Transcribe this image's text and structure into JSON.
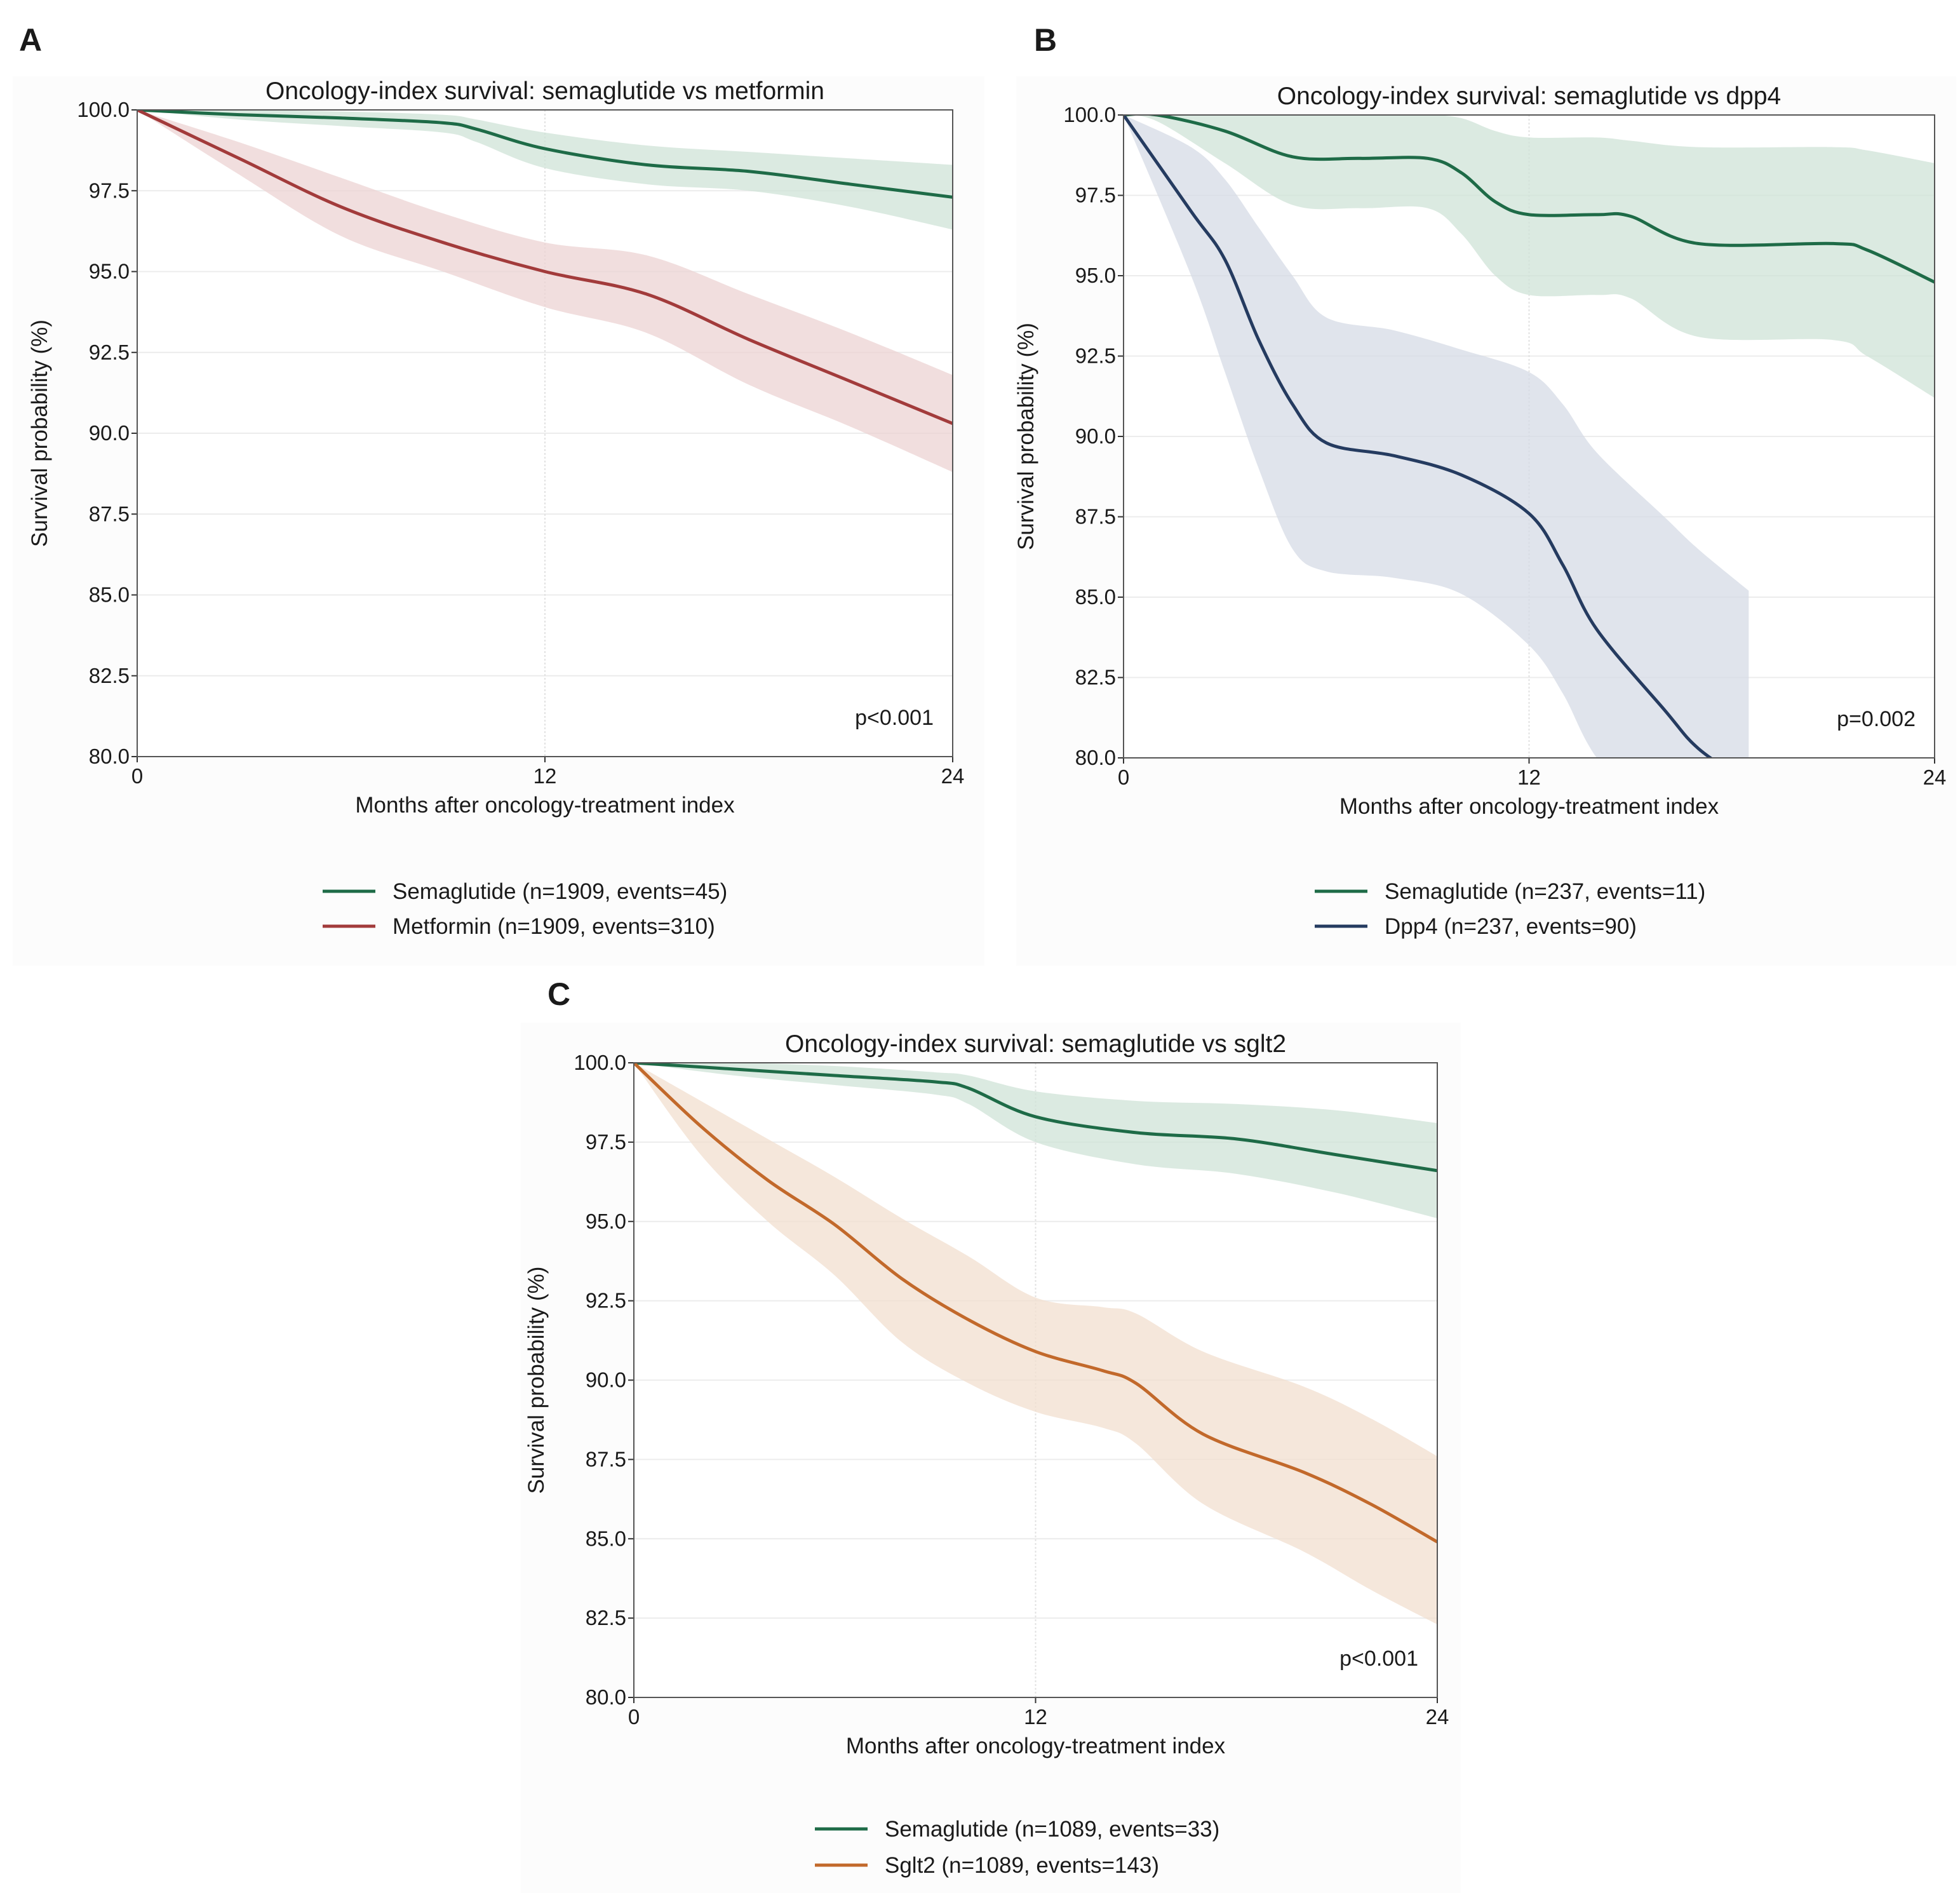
{
  "figure": {
    "panels": [
      {
        "panel_label": "A",
        "p_value": "p<0.001"
      },
      {
        "panel_label": "B",
        "p_value": "p=0.002"
      },
      {
        "panel_label": "C",
        "p_value": "p<0.001"
      }
    ]
  },
  "chart_data": [
    {
      "type": "line",
      "title": "Oncology-index survival: semaglutide vs metformin",
      "xlabel": "Months after oncology-treatment index",
      "ylabel": "Survival probability (%)",
      "xlim": [
        0,
        24
      ],
      "ylim": [
        80,
        100
      ],
      "xticks": [
        "0",
        "12",
        "24"
      ],
      "yticks": [
        "80.0",
        "82.5",
        "85.0",
        "87.5",
        "90.0",
        "92.5",
        "95.0",
        "97.5",
        "100.0"
      ],
      "grid": true,
      "legend_position": "bottom",
      "annotation": "p<0.001",
      "series": [
        {
          "name": "Semaglutide (n=1909, events=45)",
          "color": "#1e6b47",
          "band_color": "#cfe3d7",
          "x": [
            0,
            3,
            6,
            9,
            10,
            12,
            15,
            18,
            21,
            24
          ],
          "y": [
            100,
            99.85,
            99.75,
            99.6,
            99.4,
            98.8,
            98.3,
            98.1,
            97.7,
            97.3
          ],
          "ci_upper": [
            100,
            100,
            99.95,
            99.85,
            99.7,
            99.3,
            98.9,
            98.7,
            98.5,
            98.3
          ],
          "ci_lower": [
            100,
            99.7,
            99.5,
            99.3,
            99.0,
            98.2,
            97.7,
            97.5,
            97.0,
            96.3
          ]
        },
        {
          "name": "Metformin (n=1909, events=310)",
          "color": "#a23b3b",
          "band_color": "#ecd3d3",
          "x": [
            0,
            3,
            6,
            9,
            12,
            15,
            18,
            21,
            24
          ],
          "y": [
            100,
            98.5,
            97.0,
            95.9,
            95.0,
            94.3,
            92.9,
            91.6,
            90.3
          ],
          "ci_upper": [
            100,
            99.0,
            97.9,
            96.8,
            95.9,
            95.5,
            94.3,
            93.1,
            91.8
          ],
          "ci_lower": [
            100,
            98.0,
            96.1,
            95.0,
            93.9,
            93.1,
            91.5,
            90.2,
            88.8
          ]
        }
      ]
    },
    {
      "type": "line",
      "title": "Oncology-index survival: semaglutide vs dpp4",
      "xlabel": "Months after oncology-treatment index",
      "ylabel": "Survival probability (%)",
      "xlim": [
        0,
        24
      ],
      "ylim": [
        80,
        100
      ],
      "xticks": [
        "0",
        "12",
        "24"
      ],
      "yticks": [
        "80.0",
        "82.5",
        "85.0",
        "87.5",
        "90.0",
        "92.5",
        "95.0",
        "97.5",
        "100.0"
      ],
      "grid": true,
      "legend_position": "bottom",
      "annotation": "p=0.002",
      "series": [
        {
          "name": "Semaglutide (n=237, events=11)",
          "color": "#1e6b47",
          "band_color": "#cfe3d7",
          "x": [
            0,
            1,
            3,
            5,
            7,
            9,
            10,
            11,
            12,
            14,
            15,
            17,
            21,
            22,
            24
          ],
          "y": [
            100,
            100,
            99.5,
            98.7,
            98.65,
            98.65,
            98.2,
            97.3,
            96.9,
            96.9,
            96.85,
            96.0,
            96.0,
            95.8,
            94.8
          ],
          "ci_upper": [
            100,
            100,
            100,
            100,
            100,
            100,
            99.9,
            99.5,
            99.3,
            99.3,
            99.2,
            99.0,
            99.0,
            98.9,
            98.5
          ],
          "ci_lower": [
            100,
            99.8,
            98.5,
            97.2,
            97.1,
            97.1,
            96.3,
            95.0,
            94.4,
            94.4,
            94.3,
            93.1,
            93.0,
            92.5,
            91.2
          ]
        },
        {
          "name": "Dpp4 (n=237, events=90)",
          "color": "#253b60",
          "band_color": "#d6dbe5",
          "x": [
            0,
            2,
            3,
            4,
            5,
            6,
            8,
            10,
            12,
            13,
            14,
            16,
            17,
            18.5
          ],
          "y": [
            100,
            97,
            95.5,
            93,
            91,
            89.8,
            89.4,
            88.8,
            87.6,
            86,
            84,
            81.5,
            80.3,
            79.2
          ],
          "ci_upper": [
            100,
            99,
            98,
            96.5,
            95,
            93.7,
            93.3,
            92.7,
            92.0,
            91.0,
            89.5,
            87.5,
            86.5,
            85.2
          ],
          "ci_lower": [
            100,
            95,
            92,
            89,
            86.5,
            85.8,
            85.6,
            85.1,
            83.5,
            82,
            80,
            77.5,
            76.5,
            75
          ]
        }
      ]
    },
    {
      "type": "line",
      "title": "Oncology-index survival: semaglutide vs sglt2",
      "xlabel": "Months after oncology-treatment index",
      "ylabel": "Survival probability (%)",
      "xlim": [
        0,
        24
      ],
      "ylim": [
        80,
        100
      ],
      "xticks": [
        "0",
        "12",
        "24"
      ],
      "yticks": [
        "80.0",
        "82.5",
        "85.0",
        "87.5",
        "90.0",
        "92.5",
        "95.0",
        "97.5",
        "100.0"
      ],
      "grid": true,
      "legend_position": "bottom",
      "annotation": "p<0.001",
      "series": [
        {
          "name": "Semaglutide (n=1089, events=33)",
          "color": "#1e6b47",
          "band_color": "#cfe3d7",
          "x": [
            0,
            3,
            6,
            9,
            10,
            12,
            15,
            18,
            21,
            24
          ],
          "y": [
            100,
            99.8,
            99.6,
            99.4,
            99.2,
            98.3,
            97.8,
            97.6,
            97.1,
            96.6
          ],
          "ci_upper": [
            100,
            100,
            99.9,
            99.7,
            99.6,
            99.1,
            98.8,
            98.7,
            98.5,
            98.1
          ],
          "ci_lower": [
            100,
            99.6,
            99.3,
            99.0,
            98.7,
            97.5,
            96.8,
            96.5,
            95.9,
            95.1
          ]
        },
        {
          "name": "Sglt2 (n=1089, events=143)",
          "color": "#c2692b",
          "band_color": "#f2dfcf",
          "x": [
            0,
            2,
            4,
            6,
            8,
            10,
            12,
            14,
            15,
            17,
            20,
            22,
            24
          ],
          "y": [
            100,
            98,
            96.3,
            94.9,
            93.2,
            91.9,
            90.9,
            90.3,
            89.9,
            88.3,
            87.1,
            86.1,
            84.9
          ],
          "ci_upper": [
            100,
            98.8,
            97.6,
            96.4,
            95.1,
            93.9,
            92.6,
            92.3,
            92.1,
            90.9,
            89.8,
            88.8,
            87.6
          ],
          "ci_lower": [
            100,
            97.1,
            95.0,
            93.3,
            91.2,
            89.9,
            89.0,
            88.5,
            88.0,
            86.1,
            84.6,
            83.4,
            82.3
          ]
        }
      ]
    }
  ]
}
